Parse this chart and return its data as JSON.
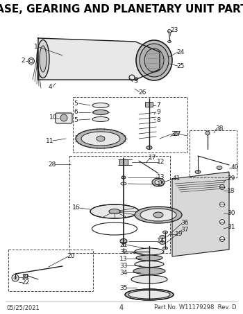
{
  "title": "CASE, GEARING AND PLANETARY UNIT PARTS",
  "title_fontsize": 11,
  "title_fontweight": "bold",
  "footer_left": "05/25/2021",
  "footer_center": "4",
  "footer_right": "Part No. W11179298  Rev. D",
  "footer_fontsize": 6,
  "bg_color": "#ffffff",
  "lc": "#1a1a1a",
  "figsize": [
    3.5,
    4.53
  ],
  "dpi": 100
}
